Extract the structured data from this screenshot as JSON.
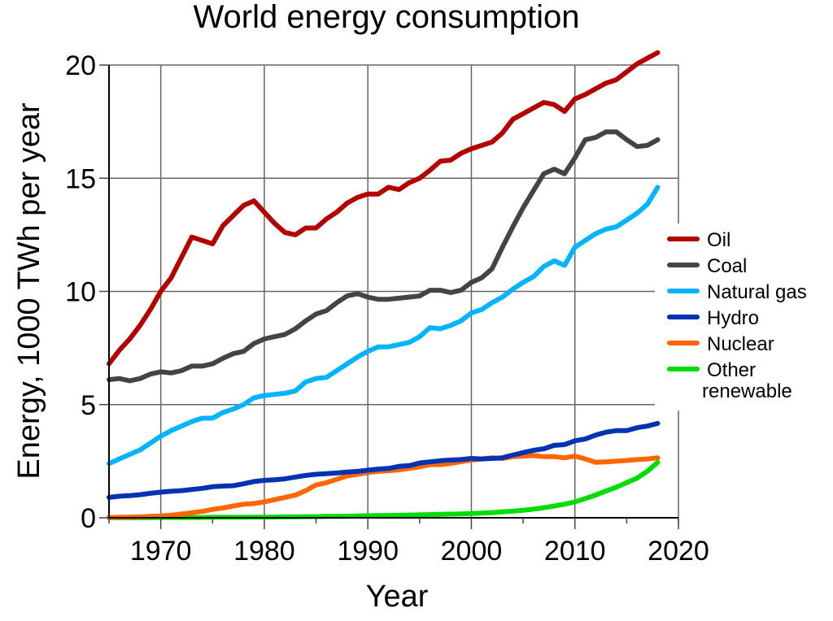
{
  "chart_data": {
    "type": "line",
    "title": "World energy consumption",
    "xlabel": "Year",
    "ylabel": "Energy, 1000 TWh per year",
    "xlim": [
      1965,
      2020
    ],
    "ylim": [
      0,
      20
    ],
    "x_ticks": [
      1970,
      1980,
      1990,
      2000,
      2010,
      2020
    ],
    "x_tick_labels": [
      "1970",
      "1980",
      "1990",
      "2000",
      "2010",
      "2020"
    ],
    "x_minor_ticks": [
      1965,
      1975,
      1985,
      1995,
      2005,
      2015
    ],
    "y_ticks": [
      0,
      5,
      10,
      15,
      20
    ],
    "y_tick_labels": [
      "0",
      "5",
      "10",
      "15",
      "20"
    ],
    "grid": true,
    "legend_position": "right",
    "x_start": 1965,
    "x_end": 2018,
    "series": [
      {
        "name": "Oil",
        "color": "#b50000",
        "values": [
          6.8,
          7.4,
          7.9,
          8.5,
          9.2,
          10.0,
          10.6,
          11.5,
          12.4,
          12.25,
          12.1,
          12.9,
          13.35,
          13.8,
          14.0,
          13.5,
          13.0,
          12.6,
          12.5,
          12.8,
          12.8,
          13.2,
          13.5,
          13.9,
          14.15,
          14.3,
          14.3,
          14.6,
          14.5,
          14.8,
          15.0,
          15.35,
          15.75,
          15.8,
          16.1,
          16.3,
          16.45,
          16.6,
          17.0,
          17.6,
          17.85,
          18.1,
          18.35,
          18.25,
          17.95,
          18.5,
          18.7,
          18.95,
          19.2,
          19.35,
          19.7,
          20.05,
          20.3,
          20.55
        ]
      },
      {
        "name": "Coal",
        "color": "#444444",
        "values": [
          6.1,
          6.15,
          6.05,
          6.15,
          6.35,
          6.45,
          6.4,
          6.5,
          6.7,
          6.7,
          6.8,
          7.05,
          7.25,
          7.35,
          7.7,
          7.9,
          8.0,
          8.1,
          8.35,
          8.7,
          9.0,
          9.15,
          9.5,
          9.8,
          9.9,
          9.75,
          9.65,
          9.65,
          9.7,
          9.75,
          9.8,
          10.05,
          10.05,
          9.95,
          10.05,
          10.4,
          10.6,
          11.0,
          11.95,
          12.85,
          13.7,
          14.45,
          15.2,
          15.4,
          15.2,
          15.9,
          16.7,
          16.8,
          17.05,
          17.05,
          16.7,
          16.4,
          16.45,
          16.7
        ]
      },
      {
        "name": "Natural gas",
        "color": "#00b4ff",
        "values": [
          2.4,
          2.6,
          2.8,
          3.0,
          3.3,
          3.6,
          3.85,
          4.05,
          4.25,
          4.4,
          4.4,
          4.65,
          4.8,
          5.0,
          5.3,
          5.4,
          5.45,
          5.5,
          5.6,
          6.0,
          6.15,
          6.2,
          6.5,
          6.8,
          7.1,
          7.35,
          7.55,
          7.55,
          7.65,
          7.75,
          8.0,
          8.4,
          8.35,
          8.5,
          8.7,
          9.05,
          9.2,
          9.5,
          9.75,
          10.1,
          10.4,
          10.65,
          11.1,
          11.35,
          11.15,
          11.95,
          12.25,
          12.55,
          12.75,
          12.85,
          13.15,
          13.45,
          13.85,
          14.6
        ]
      },
      {
        "name": "Hydro",
        "color": "#0033b3",
        "values": [
          0.9,
          0.95,
          0.98,
          1.02,
          1.08,
          1.13,
          1.17,
          1.2,
          1.25,
          1.3,
          1.37,
          1.4,
          1.42,
          1.5,
          1.6,
          1.65,
          1.68,
          1.72,
          1.8,
          1.87,
          1.92,
          1.95,
          1.98,
          2.02,
          2.05,
          2.1,
          2.15,
          2.18,
          2.27,
          2.3,
          2.42,
          2.47,
          2.52,
          2.55,
          2.57,
          2.62,
          2.6,
          2.62,
          2.65,
          2.77,
          2.88,
          2.98,
          3.05,
          3.2,
          3.23,
          3.4,
          3.48,
          3.65,
          3.78,
          3.85,
          3.85,
          3.98,
          4.05,
          4.17
        ]
      },
      {
        "name": "Nuclear",
        "color": "#ff6600",
        "values": [
          0.01,
          0.02,
          0.03,
          0.04,
          0.06,
          0.08,
          0.11,
          0.16,
          0.22,
          0.28,
          0.37,
          0.43,
          0.52,
          0.6,
          0.63,
          0.7,
          0.8,
          0.9,
          1.0,
          1.2,
          1.45,
          1.55,
          1.7,
          1.85,
          1.92,
          2.0,
          2.05,
          2.08,
          2.12,
          2.18,
          2.25,
          2.35,
          2.35,
          2.4,
          2.48,
          2.55,
          2.6,
          2.65,
          2.62,
          2.7,
          2.72,
          2.75,
          2.7,
          2.7,
          2.65,
          2.72,
          2.6,
          2.45,
          2.47,
          2.5,
          2.53,
          2.57,
          2.6,
          2.65
        ]
      },
      {
        "name": "Other renewable",
        "color": "#00dd00",
        "values": [
          0.0,
          0.0,
          0.0,
          0.0,
          0.0,
          0.01,
          0.01,
          0.01,
          0.01,
          0.01,
          0.02,
          0.02,
          0.02,
          0.02,
          0.03,
          0.03,
          0.03,
          0.04,
          0.04,
          0.05,
          0.05,
          0.06,
          0.06,
          0.07,
          0.08,
          0.09,
          0.1,
          0.1,
          0.11,
          0.12,
          0.13,
          0.14,
          0.15,
          0.16,
          0.17,
          0.19,
          0.21,
          0.23,
          0.26,
          0.29,
          0.33,
          0.38,
          0.44,
          0.52,
          0.6,
          0.7,
          0.85,
          1.0,
          1.18,
          1.35,
          1.55,
          1.75,
          2.05,
          2.45
        ]
      }
    ]
  }
}
